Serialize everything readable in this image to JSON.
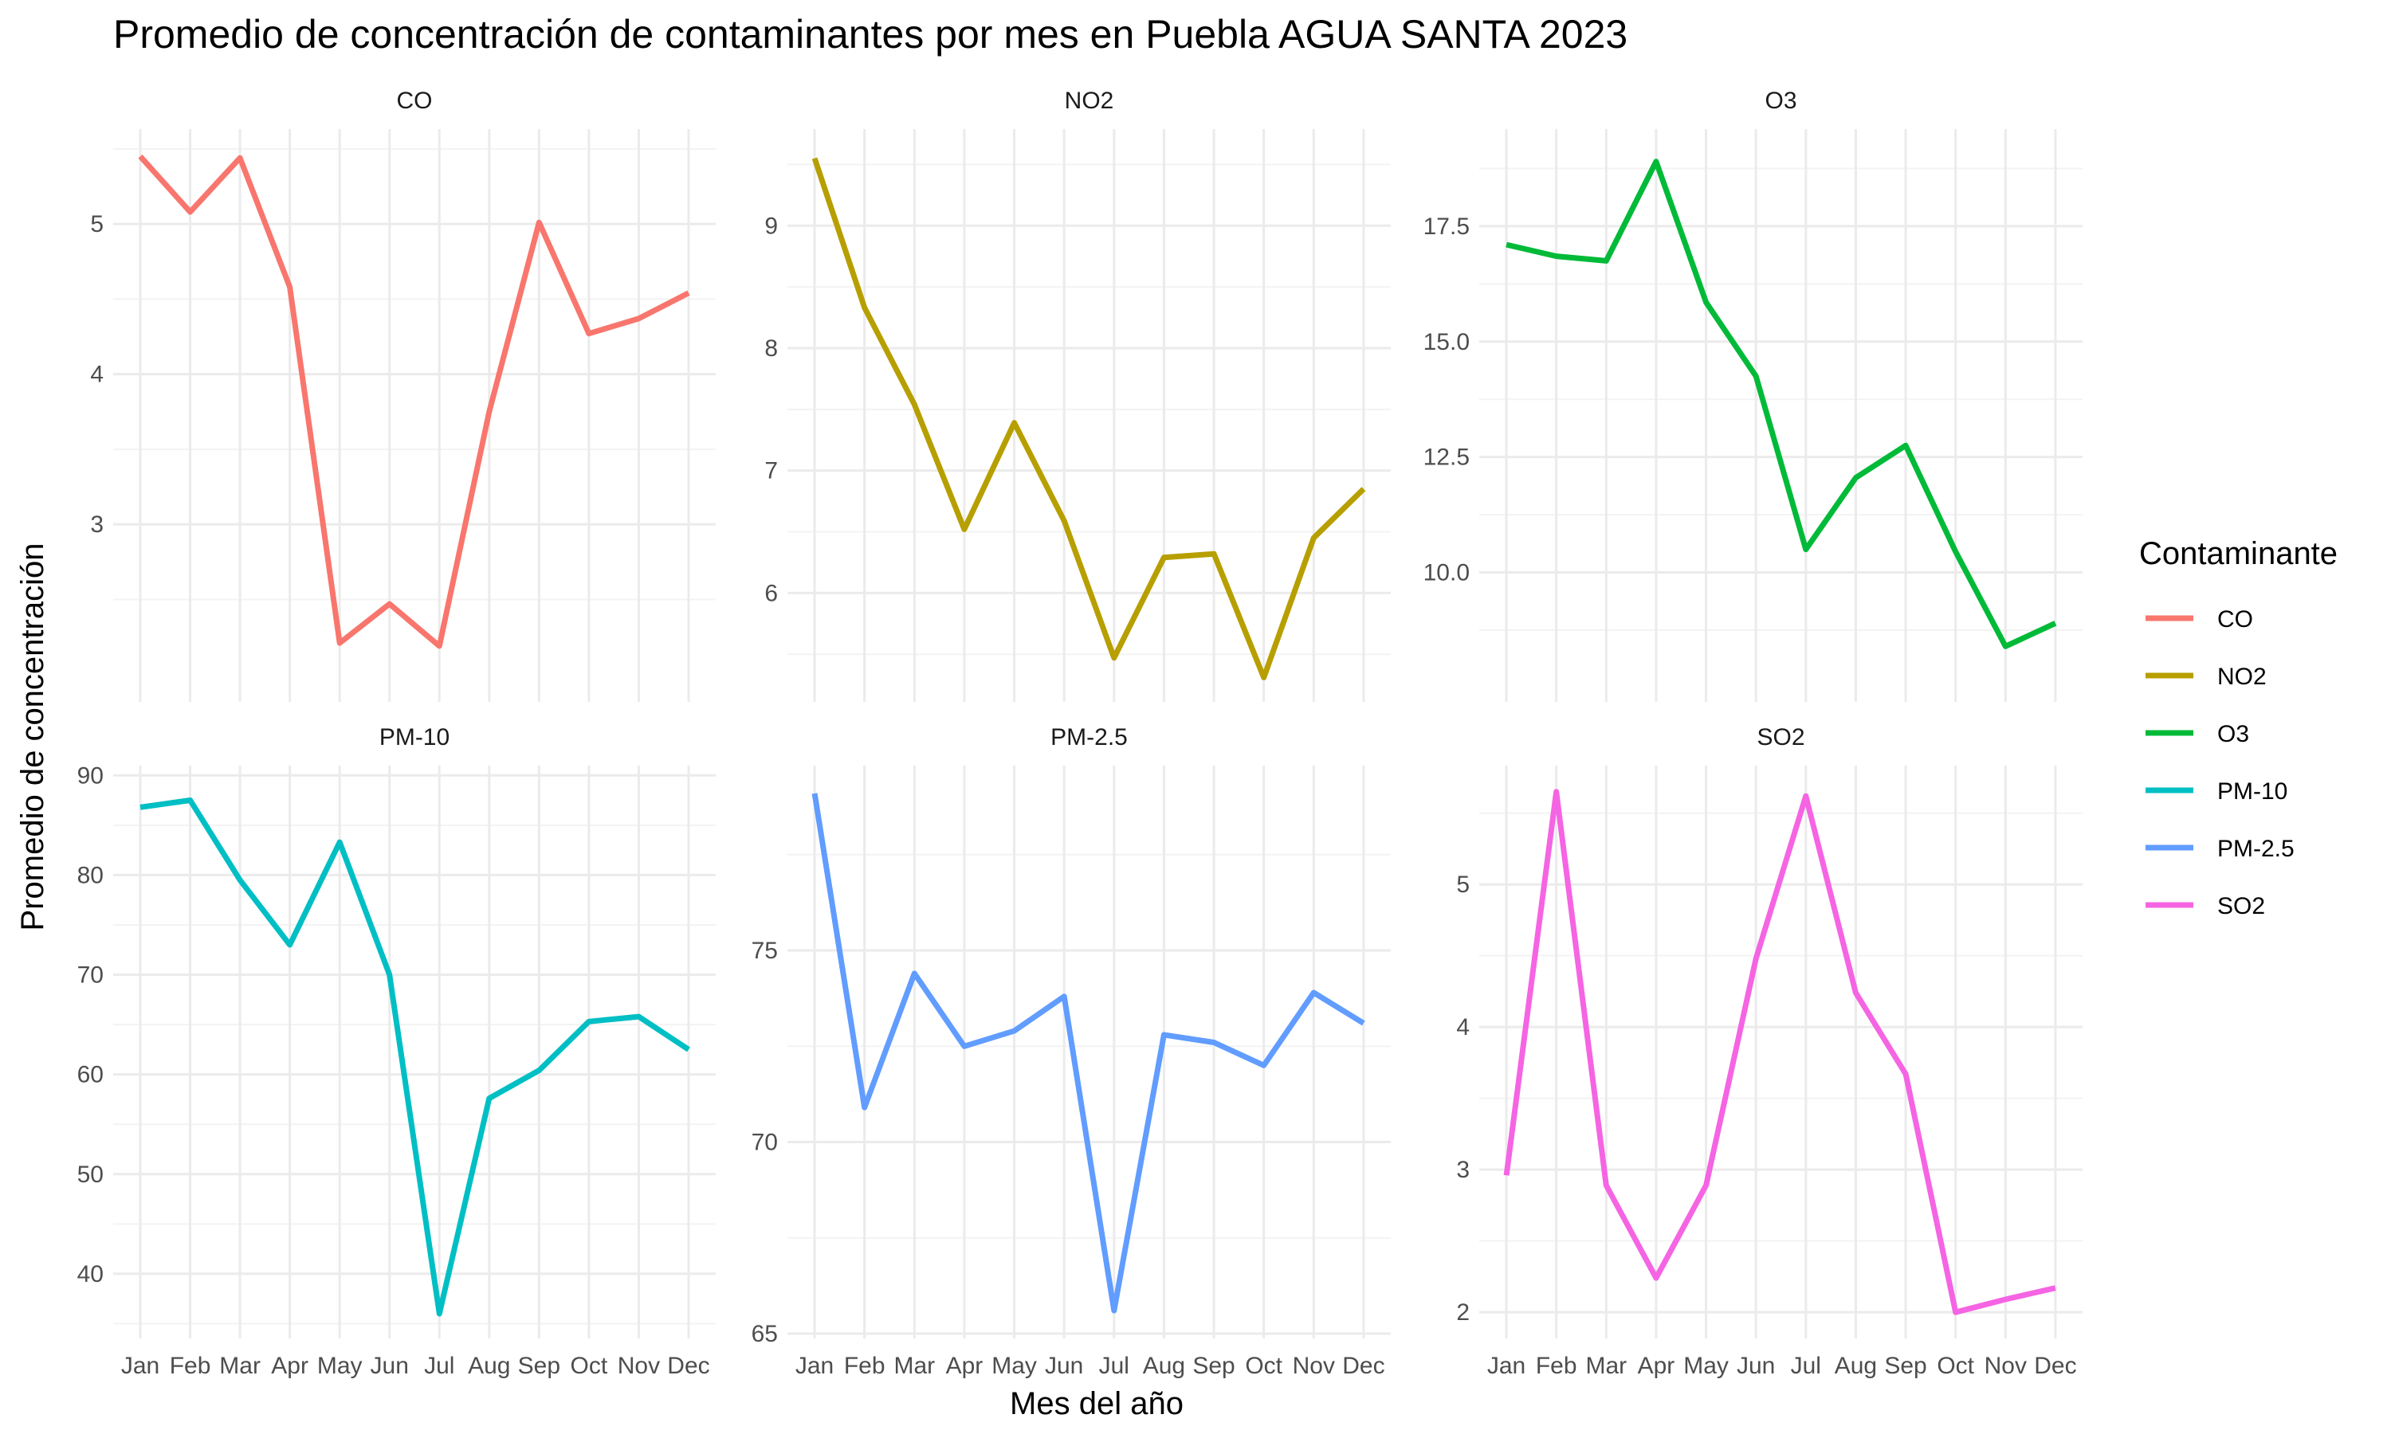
{
  "title": "Promedio de concentración de contaminantes por mes en Puebla AGUA SANTA 2023",
  "xlabel": "Mes del año",
  "ylabel": "Promedio de concentración",
  "legend": {
    "title": "Contaminante",
    "entries": [
      {
        "name": "CO",
        "color": "#F8766D"
      },
      {
        "name": "NO2",
        "color": "#B79F00"
      },
      {
        "name": "O3",
        "color": "#00BA38"
      },
      {
        "name": "PM-10",
        "color": "#00BFC4"
      },
      {
        "name": "PM-2.5",
        "color": "#619CFF"
      },
      {
        "name": "SO2",
        "color": "#F564E3"
      }
    ]
  },
  "chart_data": {
    "type": "line",
    "facets": "3 columns x 2 rows, free y scales",
    "categories": [
      "Jan",
      "Feb",
      "Mar",
      "Apr",
      "May",
      "Jun",
      "Jul",
      "Aug",
      "Sep",
      "Oct",
      "Nov",
      "Dec"
    ],
    "xlabel": "Mes del año",
    "ylabel": "Promedio de concentración",
    "legend_position": "right",
    "grid": true,
    "panels": [
      {
        "name": "CO",
        "color": "#F8766D",
        "values": [
          5.45,
          5.08,
          5.44,
          4.58,
          2.21,
          2.47,
          2.19,
          3.75,
          5.01,
          4.27,
          4.37,
          4.54
        ],
        "ylim": [
          1.85,
          5.6
        ],
        "yticks": [
          3,
          4,
          5
        ],
        "yminor": [
          2.5,
          3.5,
          4.5,
          5.5
        ]
      },
      {
        "name": "NO2",
        "color": "#B79F00",
        "values": [
          9.55,
          8.33,
          7.54,
          6.52,
          7.39,
          6.59,
          5.47,
          6.29,
          6.32,
          5.31,
          6.45,
          6.85
        ],
        "ylim": [
          5.15,
          9.75
        ],
        "yticks": [
          6,
          7,
          8,
          9
        ],
        "yminor": [
          5.5,
          6.5,
          7.5,
          8.5,
          9.5
        ]
      },
      {
        "name": "O3",
        "color": "#00BA38",
        "values": [
          17.1,
          16.85,
          16.75,
          18.9,
          15.85,
          14.25,
          10.5,
          12.05,
          12.75,
          10.45,
          8.4,
          8.9
        ],
        "ylim": [
          7.3,
          19.5
        ],
        "yticks": [
          10.0,
          12.5,
          15.0,
          17.5
        ],
        "yminor": [
          8.75,
          11.25,
          13.75,
          16.25,
          18.75
        ]
      },
      {
        "name": "PM-10",
        "color": "#00BFC4",
        "values": [
          86.8,
          87.5,
          79.5,
          73.0,
          83.3,
          70.0,
          36.0,
          57.6,
          60.4,
          65.3,
          65.8,
          62.5
        ],
        "ylim": [
          34.0,
          90.5
        ],
        "yticks": [
          40,
          50,
          60,
          70,
          80,
          90
        ],
        "yminor": [
          35,
          45,
          55,
          65,
          75,
          85
        ]
      },
      {
        "name": "PM-2.5",
        "color": "#619CFF",
        "values": [
          79.1,
          70.9,
          74.4,
          72.5,
          72.9,
          73.8,
          65.6,
          72.8,
          72.6,
          72.0,
          73.9,
          73.1
        ],
        "ylim": [
          65.0,
          79.7
        ],
        "yticks": [
          65,
          70,
          75
        ],
        "yminor": [
          67.5,
          72.5,
          77.5
        ]
      },
      {
        "name": "SO2",
        "color": "#F564E3",
        "values": [
          2.96,
          5.65,
          2.89,
          2.24,
          2.89,
          4.48,
          5.62,
          4.24,
          3.67,
          2.0,
          2.09,
          2.17
        ],
        "ylim": [
          1.85,
          5.8
        ],
        "yticks": [
          2,
          3,
          4,
          5
        ],
        "yminor": [
          2.5,
          3.5,
          4.5,
          5.5
        ]
      }
    ]
  }
}
